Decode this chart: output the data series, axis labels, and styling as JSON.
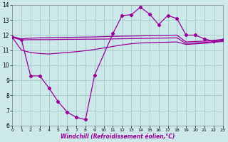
{
  "bg_color": "#cce8e8",
  "grid_color": "#aacccc",
  "line_color": "#990099",
  "xlabel": "Windchill (Refroidissement éolien,°C)",
  "ylim": [
    6,
    14
  ],
  "xlim": [
    0,
    23
  ],
  "yticks": [
    6,
    7,
    8,
    9,
    10,
    11,
    12,
    13,
    14
  ],
  "xticks": [
    0,
    1,
    2,
    3,
    4,
    5,
    6,
    7,
    8,
    9,
    10,
    11,
    12,
    13,
    14,
    15,
    16,
    17,
    18,
    19,
    20,
    21,
    22,
    23
  ],
  "line_top_x": [
    0,
    1,
    2,
    3,
    4,
    5,
    6,
    7,
    8,
    9,
    10,
    11,
    12,
    13,
    14,
    15,
    16,
    17,
    18,
    19,
    20,
    21,
    22,
    23
  ],
  "line_top_y": [
    11.9,
    11.75,
    11.8,
    11.82,
    11.83,
    11.84,
    11.85,
    11.86,
    11.87,
    11.88,
    11.9,
    11.92,
    11.93,
    11.94,
    11.95,
    11.97,
    11.98,
    11.99,
    12.0,
    11.55,
    11.58,
    11.6,
    11.65,
    11.72
  ],
  "line_mid_x": [
    0,
    1,
    2,
    3,
    4,
    5,
    6,
    7,
    8,
    9,
    10,
    11,
    12,
    13,
    14,
    15,
    16,
    17,
    18,
    19,
    20,
    21,
    22,
    23
  ],
  "line_mid_y": [
    11.85,
    11.68,
    11.7,
    11.7,
    11.7,
    11.71,
    11.72,
    11.72,
    11.73,
    11.73,
    11.74,
    11.75,
    11.76,
    11.77,
    11.78,
    11.79,
    11.8,
    11.81,
    11.82,
    11.45,
    11.48,
    11.52,
    11.57,
    11.62
  ],
  "line_bot_x": [
    0,
    1,
    2,
    3,
    4,
    5,
    6,
    7,
    8,
    9,
    10,
    11,
    12,
    13,
    14,
    15,
    16,
    17,
    18,
    19,
    20,
    21,
    22,
    23
  ],
  "line_bot_y": [
    11.85,
    11.0,
    10.85,
    10.78,
    10.75,
    10.8,
    10.85,
    10.9,
    10.97,
    11.05,
    11.15,
    11.25,
    11.35,
    11.43,
    11.48,
    11.5,
    11.52,
    11.53,
    11.55,
    11.38,
    11.42,
    11.46,
    11.52,
    11.58
  ],
  "wc_x": [
    0,
    1,
    2,
    3,
    4,
    5,
    6,
    7,
    8,
    9,
    11,
    12,
    13,
    14,
    15,
    16,
    17,
    18,
    19,
    20,
    21,
    22,
    23
  ],
  "wc_y": [
    11.9,
    11.7,
    9.3,
    9.3,
    8.5,
    7.6,
    6.9,
    6.55,
    6.4,
    9.35,
    12.1,
    13.3,
    13.35,
    13.85,
    13.4,
    12.7,
    13.3,
    13.1,
    12.0,
    12.0,
    11.75,
    11.6,
    11.7
  ]
}
